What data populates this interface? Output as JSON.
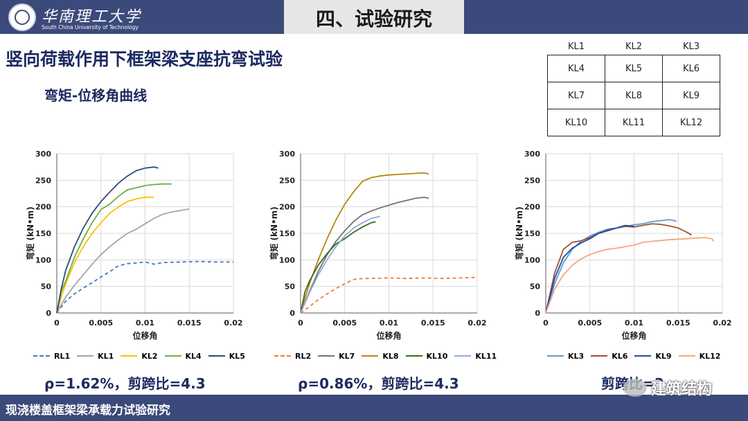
{
  "header": {
    "logo_cn": "华南理工大学",
    "logo_en": "South China University of Technology",
    "section_title": "四、试验研究"
  },
  "heading": "竖向荷载作用下框架梁支座抗弯试验",
  "subheading": "弯矩-位移角曲线",
  "specimen_table": [
    [
      "KL1",
      "KL2",
      "KL3"
    ],
    [
      "KL4",
      "KL5",
      "KL6"
    ],
    [
      "KL7",
      "KL8",
      "KL9"
    ],
    [
      "KL10",
      "KL11",
      "KL12"
    ]
  ],
  "chart_data": [
    {
      "type": "line",
      "ylabel": "弯矩 (kN•m)",
      "xlabel": "位移角",
      "xlim": [
        0,
        0.02
      ],
      "ylim": [
        0,
        300
      ],
      "xticks": [
        "0",
        "0.005",
        "0.01",
        "0.015",
        "0.02"
      ],
      "yticks": [
        "0",
        "50",
        "100",
        "150",
        "200",
        "250",
        "300"
      ],
      "series": [
        {
          "name": "RL1",
          "color": "#4472c4",
          "dashed": true,
          "points": [
            [
              0,
              0
            ],
            [
              0.001,
              22
            ],
            [
              0.002,
              36
            ],
            [
              0.003,
              47
            ],
            [
              0.004,
              57
            ],
            [
              0.005,
              68
            ],
            [
              0.006,
              78
            ],
            [
              0.007,
              89
            ],
            [
              0.008,
              93
            ],
            [
              0.009,
              94
            ],
            [
              0.01,
              96
            ],
            [
              0.011,
              92
            ],
            [
              0.012,
              95
            ],
            [
              0.014,
              96
            ],
            [
              0.016,
              97
            ],
            [
              0.018,
              96
            ],
            [
              0.02,
              96
            ]
          ]
        },
        {
          "name": "KL1",
          "color": "#a5a5a5",
          "dashed": false,
          "points": [
            [
              0,
              0
            ],
            [
              0.001,
              30
            ],
            [
              0.002,
              52
            ],
            [
              0.003,
              72
            ],
            [
              0.004,
              92
            ],
            [
              0.005,
              110
            ],
            [
              0.006,
              125
            ],
            [
              0.007,
              138
            ],
            [
              0.008,
              150
            ],
            [
              0.009,
              158
            ],
            [
              0.01,
              168
            ],
            [
              0.011,
              178
            ],
            [
              0.012,
              186
            ],
            [
              0.013,
              190
            ],
            [
              0.014,
              193
            ],
            [
              0.015,
              196
            ]
          ]
        },
        {
          "name": "KL2",
          "color": "#ffc000",
          "dashed": false,
          "points": [
            [
              0,
              0
            ],
            [
              0.0005,
              30
            ],
            [
              0.001,
              55
            ],
            [
              0.002,
              95
            ],
            [
              0.003,
              125
            ],
            [
              0.004,
              150
            ],
            [
              0.005,
              170
            ],
            [
              0.006,
              188
            ],
            [
              0.007,
              200
            ],
            [
              0.008,
              210
            ],
            [
              0.009,
              215
            ],
            [
              0.01,
              218
            ],
            [
              0.011,
              218
            ]
          ]
        },
        {
          "name": "KL4",
          "color": "#70ad47",
          "dashed": false,
          "points": [
            [
              0,
              0
            ],
            [
              0.0005,
              40
            ],
            [
              0.001,
              60
            ],
            [
              0.002,
              105
            ],
            [
              0.003,
              140
            ],
            [
              0.004,
              170
            ],
            [
              0.005,
              195
            ],
            [
              0.006,
              205
            ],
            [
              0.007,
              220
            ],
            [
              0.008,
              232
            ],
            [
              0.009,
              236
            ],
            [
              0.01,
              240
            ],
            [
              0.011,
              242
            ],
            [
              0.012,
              243
            ],
            [
              0.013,
              243
            ]
          ]
        },
        {
          "name": "KL5",
          "color": "#2e4a7a",
          "dashed": false,
          "points": [
            [
              0,
              0
            ],
            [
              0.0005,
              45
            ],
            [
              0.001,
              80
            ],
            [
              0.002,
              125
            ],
            [
              0.003,
              160
            ],
            [
              0.004,
              188
            ],
            [
              0.005,
              210
            ],
            [
              0.006,
              228
            ],
            [
              0.007,
              245
            ],
            [
              0.008,
              258
            ],
            [
              0.009,
              268
            ],
            [
              0.01,
              273
            ],
            [
              0.011,
              275
            ],
            [
              0.0115,
              273
            ]
          ]
        }
      ]
    },
    {
      "type": "line",
      "ylabel": "弯矩 (kN•m)",
      "xlabel": "位移角",
      "xlim": [
        0,
        0.02
      ],
      "ylim": [
        0,
        300
      ],
      "xticks": [
        "0",
        "0.005",
        "0.01",
        "0.015",
        "0.02"
      ],
      "yticks": [
        "0",
        "50",
        "100",
        "150",
        "200",
        "250",
        "300"
      ],
      "series": [
        {
          "name": "RL2",
          "color": "#ed7d31",
          "dashed": true,
          "points": [
            [
              0,
              0
            ],
            [
              0.001,
              12
            ],
            [
              0.002,
              25
            ],
            [
              0.003,
              36
            ],
            [
              0.004,
              46
            ],
            [
              0.005,
              55
            ],
            [
              0.006,
              63
            ],
            [
              0.007,
              65
            ],
            [
              0.008,
              65
            ],
            [
              0.01,
              66
            ],
            [
              0.012,
              65
            ],
            [
              0.014,
              66
            ],
            [
              0.016,
              65
            ],
            [
              0.018,
              66
            ],
            [
              0.02,
              67
            ]
          ]
        },
        {
          "name": "KL7",
          "color": "#767171",
          "dashed": false,
          "points": [
            [
              0,
              0
            ],
            [
              0.001,
              40
            ],
            [
              0.002,
              78
            ],
            [
              0.003,
              110
            ],
            [
              0.004,
              135
            ],
            [
              0.005,
              155
            ],
            [
              0.006,
              172
            ],
            [
              0.007,
              185
            ],
            [
              0.008,
              192
            ],
            [
              0.009,
              198
            ],
            [
              0.01,
              203
            ],
            [
              0.011,
              208
            ],
            [
              0.012,
              212
            ],
            [
              0.013,
              216
            ],
            [
              0.014,
              218
            ],
            [
              0.0145,
              216
            ]
          ]
        },
        {
          "name": "KL8",
          "color": "#b8860b",
          "dashed": false,
          "points": [
            [
              0,
              0
            ],
            [
              0.001,
              55
            ],
            [
              0.002,
              100
            ],
            [
              0.003,
              140
            ],
            [
              0.004,
              175
            ],
            [
              0.005,
              205
            ],
            [
              0.006,
              228
            ],
            [
              0.007,
              248
            ],
            [
              0.008,
              255
            ],
            [
              0.009,
              258
            ],
            [
              0.01,
              260
            ],
            [
              0.011,
              261
            ],
            [
              0.012,
              262
            ],
            [
              0.013,
              263
            ],
            [
              0.014,
              264
            ],
            [
              0.0145,
              262
            ]
          ]
        },
        {
          "name": "KL10",
          "color": "#3a6b1f",
          "dashed": false,
          "points": [
            [
              0,
              0
            ],
            [
              0.0005,
              40
            ],
            [
              0.001,
              60
            ],
            [
              0.002,
              90
            ],
            [
              0.003,
              112
            ],
            [
              0.004,
              130
            ],
            [
              0.005,
              140
            ],
            [
              0.006,
              152
            ],
            [
              0.007,
              162
            ],
            [
              0.008,
              170
            ],
            [
              0.0085,
              172
            ]
          ]
        },
        {
          "name": "KL11",
          "color": "#8faadc",
          "dashed": false,
          "points": [
            [
              0,
              0
            ],
            [
              0.001,
              38
            ],
            [
              0.002,
              72
            ],
            [
              0.003,
              100
            ],
            [
              0.004,
              125
            ],
            [
              0.005,
              145
            ],
            [
              0.006,
              160
            ],
            [
              0.007,
              170
            ],
            [
              0.008,
              178
            ],
            [
              0.009,
              182
            ]
          ]
        }
      ]
    },
    {
      "type": "line",
      "ylabel": "弯矩 (kN•m)",
      "xlabel": "位移角",
      "xlim": [
        0,
        0.02
      ],
      "ylim": [
        0,
        300
      ],
      "xticks": [
        "0",
        "0.005",
        "0.01",
        "0.015",
        "0.02"
      ],
      "yticks": [
        "0",
        "50",
        "100",
        "150",
        "200",
        "250",
        "300"
      ],
      "series": [
        {
          "name": "KL3",
          "color": "#5b9bd5",
          "dashed": false,
          "points": [
            [
              0,
              0
            ],
            [
              0.001,
              55
            ],
            [
              0.002,
              95
            ],
            [
              0.003,
              120
            ],
            [
              0.004,
              135
            ],
            [
              0.005,
              145
            ],
            [
              0.006,
              152
            ],
            [
              0.007,
              158
            ],
            [
              0.008,
              160
            ],
            [
              0.009,
              163
            ],
            [
              0.01,
              166
            ],
            [
              0.011,
              168
            ],
            [
              0.012,
              172
            ],
            [
              0.013,
              174
            ],
            [
              0.014,
              176
            ],
            [
              0.0148,
              173
            ]
          ]
        },
        {
          "name": "KL6",
          "color": "#a0522d",
          "dashed": false,
          "points": [
            [
              0,
              0
            ],
            [
              0.001,
              75
            ],
            [
              0.002,
              120
            ],
            [
              0.003,
              133
            ],
            [
              0.004,
              136
            ],
            [
              0.005,
              142
            ],
            [
              0.006,
              150
            ],
            [
              0.007,
              156
            ],
            [
              0.008,
              160
            ],
            [
              0.009,
              163
            ],
            [
              0.01,
              162
            ],
            [
              0.011,
              165
            ],
            [
              0.012,
              168
            ],
            [
              0.013,
              167
            ],
            [
              0.014,
              164
            ],
            [
              0.015,
              160
            ],
            [
              0.016,
              152
            ],
            [
              0.0165,
              147
            ]
          ]
        },
        {
          "name": "KL9",
          "color": "#1f4e9e",
          "dashed": false,
          "points": [
            [
              0,
              0
            ],
            [
              0.001,
              65
            ],
            [
              0.002,
              105
            ],
            [
              0.003,
              122
            ],
            [
              0.004,
              132
            ],
            [
              0.005,
              140
            ],
            [
              0.006,
              150
            ],
            [
              0.007,
              155
            ],
            [
              0.008,
              160
            ],
            [
              0.009,
              165
            ],
            [
              0.01,
              163
            ]
          ]
        },
        {
          "name": "KL12",
          "color": "#f4a582",
          "dashed": false,
          "points": [
            [
              0,
              0
            ],
            [
              0.001,
              45
            ],
            [
              0.002,
              72
            ],
            [
              0.003,
              90
            ],
            [
              0.004,
              102
            ],
            [
              0.005,
              110
            ],
            [
              0.006,
              116
            ],
            [
              0.007,
              120
            ],
            [
              0.008,
              122
            ],
            [
              0.009,
              125
            ],
            [
              0.01,
              128
            ],
            [
              0.011,
              133
            ],
            [
              0.012,
              135
            ],
            [
              0.014,
              138
            ],
            [
              0.016,
              140
            ],
            [
              0.018,
              142
            ],
            [
              0.0188,
              140
            ],
            [
              0.019,
              135
            ]
          ]
        }
      ]
    }
  ],
  "notes": [
    "ρ=1.62%，剪跨比=4.3",
    "ρ=0.86%，剪跨比=4.3",
    "剪跨比=3"
  ],
  "watermark": "建筑结构",
  "footer": "现浇楼盖框架梁承载力试验研究"
}
